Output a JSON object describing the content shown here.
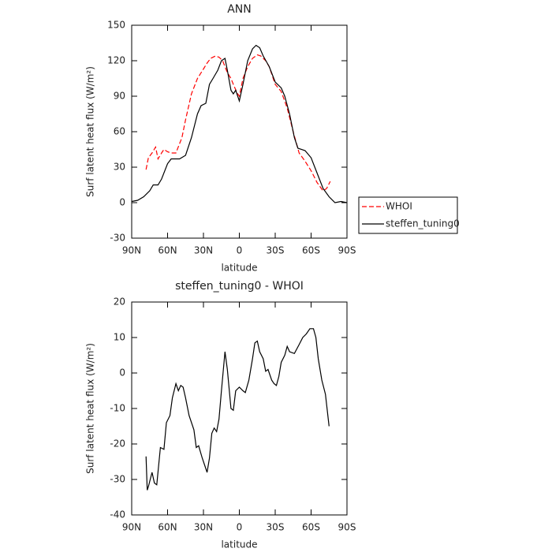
{
  "chart_data": [
    {
      "type": "line",
      "title": "ANN",
      "x_label": "latitude",
      "y_label": "Surf latent heat flux (W/m²)",
      "xlim": [
        90,
        -90
      ],
      "xticks": [
        {
          "value": 90,
          "label": "90N"
        },
        {
          "value": 60,
          "label": "60N"
        },
        {
          "value": 30,
          "label": "30N"
        },
        0,
        {
          "value": -30,
          "label": "30S"
        },
        {
          "value": -60,
          "label": "60S"
        },
        {
          "value": -90,
          "label": "90S"
        }
      ],
      "ylim": [
        -30,
        150
      ],
      "yticks": [
        -30,
        0,
        30,
        60,
        90,
        120,
        150
      ],
      "series": [
        {
          "name": "WHOI",
          "color": "#ff0000",
          "dashed": true,
          "x": [
            78,
            76,
            73,
            70,
            68,
            65,
            63,
            60,
            57,
            53,
            48,
            45,
            40,
            35,
            30,
            27,
            24,
            20,
            17,
            14,
            10,
            7,
            5,
            2,
            0,
            -3,
            -7,
            -11,
            -15,
            -18,
            -22,
            -25,
            -30,
            -35,
            -40,
            -45,
            -50,
            -55,
            -60,
            -65,
            -70,
            -73,
            -76
          ],
          "values": [
            28,
            38,
            42,
            47,
            37,
            42,
            45,
            43,
            42,
            42,
            55,
            70,
            92,
            105,
            113,
            118,
            122,
            124,
            123,
            120,
            110,
            105,
            100,
            93,
            90,
            105,
            115,
            122,
            125,
            124,
            120,
            115,
            100,
            94,
            80,
            60,
            42,
            35,
            27,
            17,
            10,
            12,
            18
          ]
        },
        {
          "name": "steffen_tuning0",
          "color": "#000000",
          "dashed": false,
          "x": [
            90,
            85,
            80,
            75,
            72,
            68,
            65,
            60,
            57,
            50,
            45,
            40,
            35,
            32,
            28,
            25,
            22,
            18,
            15,
            12,
            10,
            7,
            5,
            3,
            0,
            -3,
            -7,
            -11,
            -14,
            -17,
            -20,
            -25,
            -30,
            -35,
            -38,
            -42,
            -46,
            -49,
            -55,
            -60,
            -65,
            -70,
            -75,
            -80,
            -85,
            -90
          ],
          "values": [
            1,
            2,
            5,
            10,
            15,
            15,
            20,
            33,
            37,
            37,
            40,
            55,
            75,
            82,
            84,
            100,
            105,
            112,
            120,
            122,
            112,
            95,
            92,
            95,
            86,
            100,
            120,
            130,
            133,
            131,
            124,
            115,
            102,
            97,
            90,
            75,
            55,
            46,
            44,
            38,
            25,
            12,
            5,
            0,
            1,
            0
          ]
        }
      ]
    },
    {
      "type": "line",
      "title": "steffen_tuning0 - WHOI",
      "x_label": "latitude",
      "y_label": "Surf latent heat flux (W/m²)",
      "xlim": [
        90,
        -90
      ],
      "xticks": [
        {
          "value": 90,
          "label": "90N"
        },
        {
          "value": 60,
          "label": "60N"
        },
        {
          "value": 30,
          "label": "30N"
        },
        0,
        {
          "value": -30,
          "label": "30S"
        },
        {
          "value": -60,
          "label": "60S"
        },
        {
          "value": -90,
          "label": "90S"
        }
      ],
      "ylim": [
        -40,
        20
      ],
      "yticks": [
        -40,
        -30,
        -20,
        -10,
        0,
        10,
        20
      ],
      "series": [
        {
          "color": "#000000",
          "dashed": false,
          "x": [
            78,
            77,
            76,
            73,
            71,
            69,
            66,
            63,
            61,
            58,
            56,
            53,
            51,
            49,
            47,
            45,
            42,
            38,
            36,
            34,
            31,
            27,
            25,
            23,
            21,
            19,
            17,
            15,
            12,
            10,
            7,
            5,
            3,
            0,
            -3,
            -5,
            -8,
            -11,
            -13,
            -15,
            -17,
            -20,
            -22,
            -24,
            -27,
            -29,
            -31,
            -33,
            -35,
            -38,
            -40,
            -42,
            -46,
            -50,
            -53,
            -56,
            -59,
            -62,
            -64,
            -66,
            -69,
            -72,
            -75
          ],
          "values": [
            -23.5,
            -33,
            -32,
            -28,
            -31,
            -31.5,
            -21,
            -21.5,
            -14,
            -12,
            -7,
            -3,
            -5,
            -3.5,
            -4,
            -7,
            -12,
            -16,
            -21,
            -20.5,
            -24,
            -28,
            -24,
            -17,
            -15.5,
            -16.5,
            -13,
            -5,
            6,
            1,
            -10,
            -10.5,
            -5,
            -4,
            -5,
            -5.5,
            -2,
            4,
            8.5,
            9,
            6,
            4,
            0.5,
            1,
            -2,
            -3,
            -3.5,
            -1,
            3,
            5,
            7.5,
            6,
            5.5,
            8,
            10,
            11,
            12.5,
            12.5,
            10,
            4,
            -2,
            -6,
            -15
          ]
        }
      ]
    }
  ]
}
